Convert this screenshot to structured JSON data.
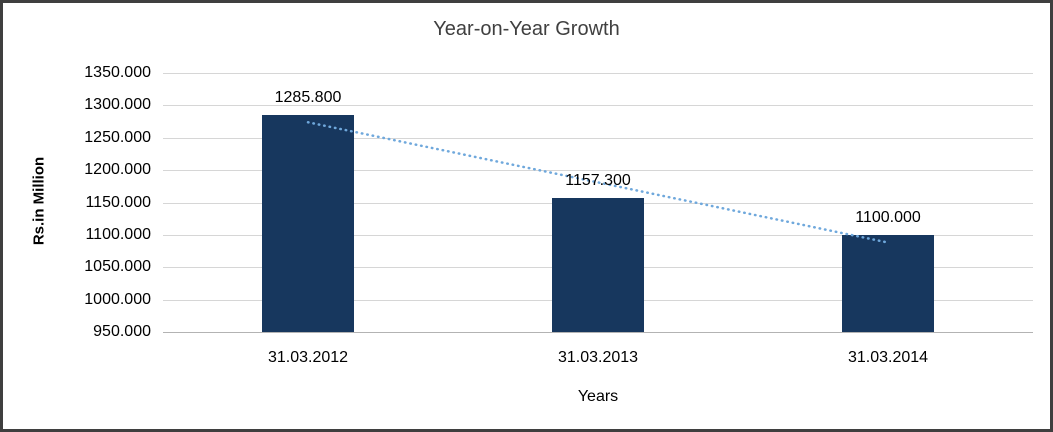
{
  "frame": {
    "border_color": "#3f3f3f",
    "background": "#ffffff"
  },
  "chart_data": {
    "type": "bar",
    "title": "Year-on-Year Growth",
    "xlabel": "Years",
    "ylabel": "Rs.in Million",
    "categories": [
      "31.03.2012",
      "31.03.2013",
      "31.03.2014"
    ],
    "values": [
      1285.8,
      1157.3,
      1100.0
    ],
    "data_labels": [
      "1285.800",
      "1157.300",
      "1100.000"
    ],
    "ylim": [
      950,
      1350
    ],
    "ytick_step": 50,
    "ytick_labels": [
      "950.000",
      "1000.000",
      "1050.000",
      "1100.000",
      "1150.000",
      "1200.000",
      "1250.000",
      "1300.000",
      "1350.000"
    ],
    "grid": true,
    "legend": "none",
    "bar_color": "#17375E",
    "trendline": {
      "style": "dotted",
      "color": "#6FA8DC",
      "values": [
        1273.93,
        1181.03,
        1088.13
      ]
    }
  }
}
